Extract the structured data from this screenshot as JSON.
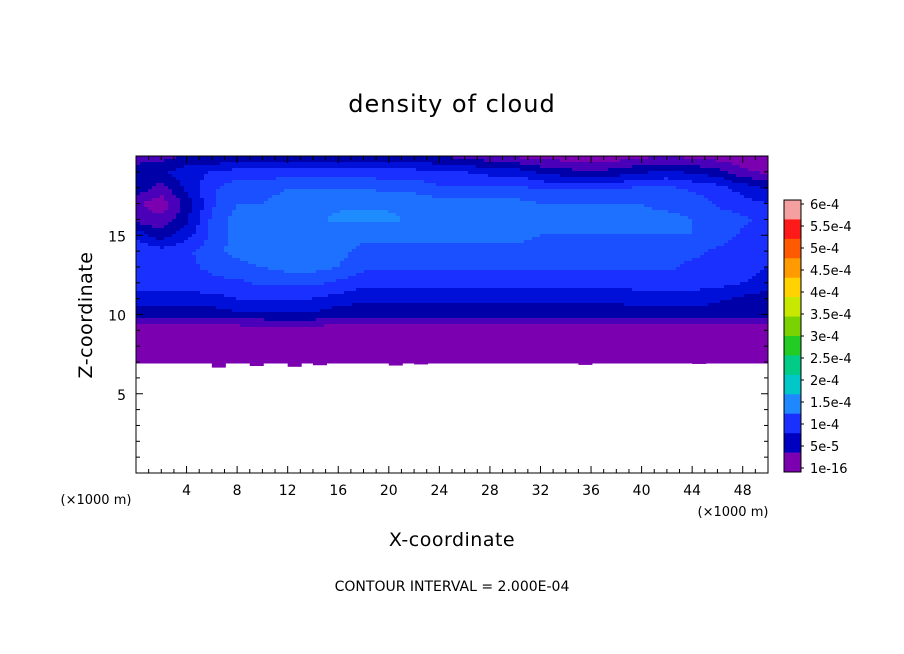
{
  "chart_data": {
    "type": "heatmap",
    "title": "density of cloud",
    "xlabel": "X-coordinate",
    "ylabel": "Z-coordinate",
    "x_unit": "(×1000 m)",
    "y_unit": "(×1000 m)",
    "xlim": [
      0,
      50
    ],
    "ylim": [
      0,
      20
    ],
    "x_ticks": [
      4,
      8,
      12,
      16,
      20,
      24,
      28,
      32,
      36,
      40,
      44,
      48
    ],
    "y_ticks": [
      5,
      10,
      15
    ],
    "footer": "CONTOUR INTERVAL = 2.000E-04",
    "colorbar": {
      "labels": [
        "6e-4",
        "5.5e-4",
        "5e-4",
        "4.5e-4",
        "4e-4",
        "3.5e-4",
        "3e-4",
        "2.5e-4",
        "2e-4",
        "1.5e-4",
        "1e-4",
        "5e-5",
        "1e-16"
      ],
      "colors": [
        "#f4a0a0",
        "#ff1a1a",
        "#ff5a00",
        "#ff9a00",
        "#ffd200",
        "#c8e800",
        "#7ad200",
        "#22cc22",
        "#00cc88",
        "#00c8c8",
        "#1e88ff",
        "#1a30ff",
        "#0000c0",
        "#7b00b0"
      ]
    },
    "field_grid": {
      "x": [
        0,
        2,
        4,
        6,
        8,
        10,
        12,
        14,
        16,
        18,
        20,
        22,
        24,
        26,
        28,
        30,
        32,
        34,
        36,
        38,
        40,
        42,
        44,
        46,
        48,
        50
      ],
      "z": [
        7,
        8,
        9,
        10,
        11,
        12,
        13,
        14,
        15,
        16,
        17,
        18,
        19,
        20
      ],
      "values": [
        [
          1e-08,
          1e-08,
          1e-08,
          1e-08,
          1e-08,
          1e-08,
          1e-08,
          1e-08,
          1e-08,
          1e-08,
          1e-08,
          1e-08,
          1e-08,
          1e-08,
          1e-08,
          1e-08,
          1e-08,
          1e-08,
          1e-08,
          1e-08,
          1e-08,
          1e-08,
          1e-08,
          1e-08,
          1e-08,
          1e-08
        ],
        [
          1e-08,
          1e-08,
          1e-08,
          1e-08,
          1e-08,
          1e-08,
          1e-08,
          1e-08,
          1e-08,
          1e-08,
          1e-08,
          1e-08,
          1e-08,
          1e-08,
          1e-08,
          1e-08,
          1e-08,
          1e-08,
          1e-08,
          1e-08,
          1e-08,
          1e-08,
          1e-08,
          1e-08,
          1e-08,
          1e-08
        ],
        [
          5e-06,
          5e-06,
          5e-06,
          5e-06,
          5e-06,
          6e-06,
          1.2e-05,
          8e-06,
          5e-06,
          5e-06,
          5e-06,
          5e-06,
          5e-06,
          5e-06,
          5e-06,
          5e-06,
          5e-06,
          5e-06,
          5e-06,
          5e-06,
          5e-06,
          5e-06,
          5e-06,
          5e-06,
          5e-06,
          5e-06
        ],
        [
          6e-05,
          6e-05,
          6e-05,
          6e-05,
          7e-05,
          7e-05,
          7e-05,
          7e-05,
          6e-05,
          6e-05,
          6e-05,
          6e-05,
          6e-05,
          6e-05,
          6e-05,
          6e-05,
          6e-05,
          6e-05,
          6e-05,
          6e-05,
          6e-05,
          6e-05,
          6e-05,
          6e-05,
          6e-05,
          6e-05
        ],
        [
          9e-05,
          9e-05,
          9e-05,
          9e-05,
          0.0001,
          0.0001,
          0.0001,
          0.0001,
          9e-05,
          8e-05,
          8e-05,
          8e-05,
          8e-05,
          8e-05,
          8e-05,
          8e-05,
          8e-05,
          8e-05,
          8e-05,
          8e-05,
          9e-05,
          9e-05,
          9e-05,
          8e-05,
          7e-05,
          6e-05
        ],
        [
          0.00011,
          0.00011,
          0.00011,
          0.00012,
          0.00012,
          0.00013,
          0.00013,
          0.00013,
          0.00012,
          0.00011,
          0.00011,
          0.00011,
          0.00011,
          0.00011,
          0.00011,
          0.00011,
          0.00011,
          0.00011,
          0.00011,
          0.00011,
          0.00011,
          0.00011,
          0.00011,
          0.00011,
          0.0001,
          9e-05
        ],
        [
          0.00012,
          0.00012,
          0.00012,
          0.00013,
          0.00014,
          0.00015,
          0.00016,
          0.00016,
          0.00015,
          0.00013,
          0.00013,
          0.00013,
          0.00013,
          0.00013,
          0.00013,
          0.00013,
          0.00013,
          0.00013,
          0.00013,
          0.00013,
          0.00013,
          0.00013,
          0.00012,
          0.00012,
          0.00011,
          0.0001
        ],
        [
          0.00012,
          0.00011,
          0.00012,
          0.00014,
          0.00016,
          0.00017,
          0.00017,
          0.00017,
          0.00016,
          0.00014,
          0.00014,
          0.00014,
          0.00014,
          0.00014,
          0.00014,
          0.00014,
          0.00014,
          0.00014,
          0.00014,
          0.00014,
          0.00013,
          0.00013,
          0.00013,
          0.00012,
          0.00011,
          0.0001
        ],
        [
          9e-05,
          6e-05,
          9e-05,
          0.00013,
          0.00016,
          0.00017,
          0.00017,
          0.00016,
          0.00016,
          0.00016,
          0.00016,
          0.00016,
          0.00016,
          0.00016,
          0.00016,
          0.00016,
          0.00015,
          0.00015,
          0.00015,
          0.00015,
          0.00015,
          0.00015,
          0.00015,
          0.00014,
          0.00012,
          0.00011
        ],
        [
          4e-05,
          3e-05,
          7e-05,
          0.00013,
          0.00016,
          0.00016,
          0.00016,
          0.00017,
          0.00018,
          0.00018,
          0.00018,
          0.00017,
          0.00017,
          0.00017,
          0.00017,
          0.00017,
          0.00016,
          0.00016,
          0.00016,
          0.00016,
          0.00016,
          0.00016,
          0.00015,
          0.00014,
          0.00013,
          0.00012
        ],
        [
          3e-05,
          1e-05,
          6e-05,
          0.00012,
          0.00015,
          0.00015,
          0.00016,
          0.00017,
          0.00017,
          0.00017,
          0.00017,
          0.00017,
          0.00016,
          0.00016,
          0.00016,
          0.00016,
          0.00015,
          0.00015,
          0.00015,
          0.00015,
          0.00015,
          0.00014,
          0.00014,
          0.00012,
          0.00011,
          0.0001
        ],
        [
          7e-05,
          4e-05,
          8e-05,
          0.00012,
          0.00014,
          0.00014,
          0.00015,
          0.00015,
          0.00015,
          0.00015,
          0.00014,
          0.00014,
          0.00013,
          0.00013,
          0.00013,
          0.00013,
          0.00012,
          0.00012,
          0.00012,
          0.00012,
          0.00013,
          0.00013,
          0.00012,
          0.00011,
          9e-05,
          7e-05
        ],
        [
          7e-05,
          7e-05,
          9e-05,
          0.0001,
          0.00011,
          0.00011,
          0.00011,
          0.00011,
          0.00011,
          0.00011,
          0.00011,
          0.00011,
          0.0001,
          0.0001,
          9e-05,
          9e-05,
          7e-05,
          6e-05,
          5e-05,
          6e-05,
          7e-05,
          8e-05,
          7e-05,
          6e-05,
          3e-05,
          2e-05
        ],
        [
          3e-05,
          4e-05,
          5e-05,
          5e-05,
          5e-05,
          5e-05,
          5e-05,
          5e-05,
          5e-05,
          5e-05,
          5e-05,
          5e-05,
          5e-05,
          4e-05,
          3e-05,
          2e-05,
          1e-05,
          1e-05,
          1e-05,
          1e-05,
          2e-05,
          2e-05,
          2e-05,
          1e-05,
          1e-05,
          1e-05
        ]
      ]
    }
  }
}
